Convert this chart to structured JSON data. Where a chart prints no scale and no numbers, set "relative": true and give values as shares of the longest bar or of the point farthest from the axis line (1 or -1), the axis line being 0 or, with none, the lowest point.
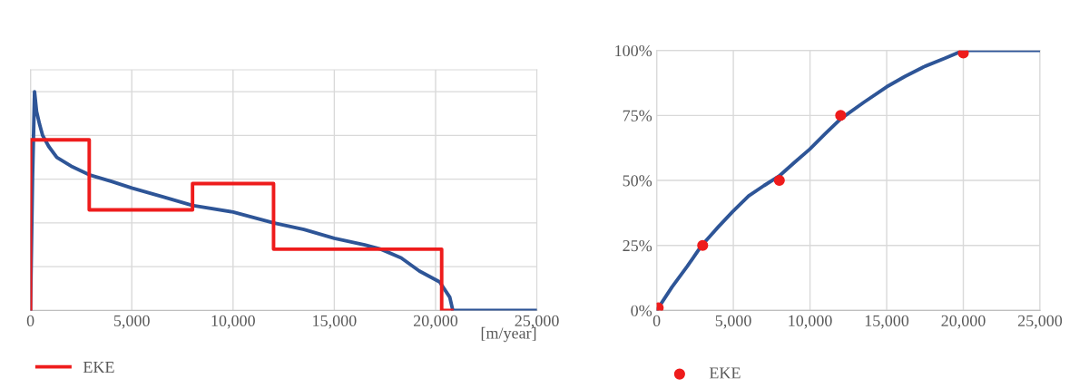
{
  "chart_data": [
    {
      "type": "line",
      "relative": true,
      "xlabel": "[m/year]",
      "xlim": [
        0,
        25000
      ],
      "xticks": [
        {
          "value": 0,
          "label": "0"
        },
        {
          "value": 5000,
          "label": "5,000"
        },
        {
          "value": 10000,
          "label": "10,000"
        },
        {
          "value": 15000,
          "label": "15,000"
        },
        {
          "value": 20000,
          "label": "20,000"
        },
        {
          "value": 25000,
          "label": "25,000"
        }
      ],
      "grid": true,
      "legend": "bottom left",
      "tick_labels": "x",
      "marker": "none",
      "line_style": "solid",
      "series": [
        {
          "color": "#2e5597",
          "x": [
            0,
            100,
            200,
            300,
            450,
            600,
            900,
            1300,
            2000,
            2900,
            4000,
            5000,
            6500,
            8000,
            10000,
            12000,
            13500,
            15000,
            16500,
            17300,
            18300,
            19200,
            20200,
            20700,
            20850,
            25000
          ],
          "values": [
            0,
            0.6,
            1.0,
            0.91,
            0.85,
            0.8,
            0.75,
            0.7,
            0.66,
            0.62,
            0.59,
            0.56,
            0.52,
            0.48,
            0.45,
            0.4,
            0.37,
            0.33,
            0.3,
            0.28,
            0.24,
            0.18,
            0.13,
            0.06,
            0,
            0
          ]
        },
        {
          "name": "EKE",
          "color": "#ee1c1c",
          "x": [
            0,
            0,
            2900,
            2900,
            8000,
            8000,
            12000,
            12000,
            20300,
            20300,
            20800
          ],
          "values": [
            0,
            0.78,
            0.78,
            0.46,
            0.46,
            0.58,
            0.58,
            0.28,
            0.28,
            0,
            0
          ]
        }
      ]
    },
    {
      "type": "line",
      "xlim": [
        0,
        25000
      ],
      "xticks": [
        {
          "value": 0,
          "label": "0"
        },
        {
          "value": 5000,
          "label": "5,000"
        },
        {
          "value": 10000,
          "label": "10,000"
        },
        {
          "value": 15000,
          "label": "15,000"
        },
        {
          "value": 20000,
          "label": "20,000"
        },
        {
          "value": 25000,
          "label": "25,000"
        }
      ],
      "ylim": [
        0,
        100
      ],
      "yticks": [
        {
          "value": 0,
          "label": "0%"
        },
        {
          "value": 25,
          "label": "25%"
        },
        {
          "value": 50,
          "label": "50%"
        },
        {
          "value": 75,
          "label": "75%"
        },
        {
          "value": 100,
          "label": "100%"
        }
      ],
      "grid": true,
      "legend": "bottom left",
      "line_style": "solid",
      "series": [
        {
          "color": "#2e5597",
          "x": [
            0,
            1000,
            2000,
            2900,
            4000,
            4960,
            6000,
            7000,
            7970,
            9000,
            9980,
            11000,
            12000,
            13500,
            15000,
            16200,
            17500,
            18800,
            20000,
            25000
          ],
          "values": [
            0,
            9,
            17,
            24.7,
            32,
            38,
            44,
            48,
            51.6,
            57,
            62,
            68,
            73.7,
            80,
            86,
            90,
            93.9,
            97,
            100,
            100
          ]
        },
        {
          "type": "scatter",
          "name": "EKE",
          "color": "#ee1c1c",
          "marker": "circle",
          "x": [
            100,
            3000,
            8000,
            12000,
            20000
          ],
          "values": [
            1,
            25,
            50,
            75,
            99
          ]
        }
      ]
    }
  ]
}
